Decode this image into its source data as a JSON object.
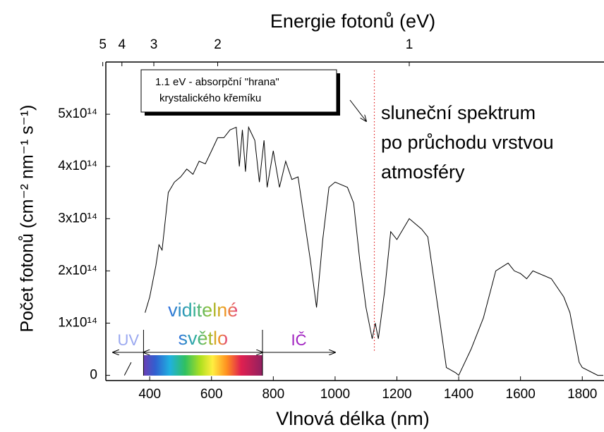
{
  "chart_data": {
    "type": "line",
    "title": "Energie fotonů (eV)",
    "x_label": "Vlnová délka (nm)",
    "y_label": "Počet fotonů (cm⁻² nm⁻¹ s⁻¹)",
    "color": "#000000",
    "x": [
      318,
      340,
      360,
      385,
      400,
      420,
      430,
      440,
      460,
      480,
      500,
      520,
      540,
      560,
      580,
      600,
      620,
      640,
      660,
      680,
      690,
      700,
      710,
      720,
      740,
      755,
      770,
      780,
      800,
      820,
      840,
      860,
      880,
      900,
      920,
      940,
      960,
      980,
      1000,
      1040,
      1060,
      1080,
      1100,
      1120,
      1130,
      1140,
      1160,
      1180,
      1200,
      1240,
      1280,
      1300,
      1340,
      1360,
      1390,
      1400,
      1440,
      1480,
      1520,
      1560,
      1580,
      1600,
      1620,
      1640,
      1700,
      1740,
      1760,
      1790,
      1800,
      1850,
      1868
    ],
    "values": [
      0,
      25000000000000.0,
      null,
      120000000000000.0,
      150000000000000.0,
      210000000000000.0,
      250000000000000.0,
      240000000000000.0,
      350000000000000.0,
      370000000000000.0,
      380000000000000.0,
      395000000000000.0,
      385000000000000.0,
      410000000000000.0,
      405000000000000.0,
      430000000000000.0,
      455000000000000.0,
      455000000000000.0,
      470000000000000.0,
      475000000000000.0,
      400000000000000.0,
      470000000000000.0,
      390000000000000.0,
      475000000000000.0,
      450000000000000.0,
      370000000000000.0,
      450000000000000.0,
      360000000000000.0,
      430000000000000.0,
      360000000000000.0,
      410000000000000.0,
      375000000000000.0,
      380000000000000.0,
      300000000000000.0,
      220000000000000.0,
      130000000000000.0,
      260000000000000.0,
      360000000000000.0,
      370000000000000.0,
      360000000000000.0,
      330000000000000.0,
      220000000000000.0,
      130000000000000.0,
      70000000000000.0,
      100000000000000.0,
      70000000000000.0,
      160000000000000.0,
      275000000000000.0,
      260000000000000.0,
      300000000000000.0,
      280000000000000.0,
      265000000000000.0,
      100000000000000.0,
      15000000000000.0,
      5000000000000.0,
      0,
      50000000000000.0,
      110000000000000.0,
      200000000000000.0,
      215000000000000.0,
      200000000000000.0,
      195000000000000.0,
      185000000000000.0,
      200000000000000.0,
      185000000000000.0,
      150000000000000.0,
      120000000000000.0,
      25000000000000.0,
      15000000000000.0,
      0,
      0
    ],
    "xlim": [
      258,
      1868
    ],
    "xticks": [
      400,
      600,
      800,
      1000,
      1200,
      1400,
      1600,
      1800
    ],
    "ylim": [
      -10000000000000.0,
      600000000000000.0
    ],
    "yticks": [
      {
        "value": 0,
        "label": "0"
      },
      {
        "value": 100000000000000.0,
        "label": "1x10¹⁴"
      },
      {
        "value": 200000000000000.0,
        "label": "2x10¹⁴"
      },
      {
        "value": 300000000000000.0,
        "label": "3x10¹⁴"
      },
      {
        "value": 400000000000000.0,
        "label": "4x10¹⁴"
      },
      {
        "value": 500000000000000.0,
        "label": "5x10¹⁴"
      }
    ],
    "x2ticks": [
      5,
      4,
      3,
      2,
      1
    ],
    "annotations": {
      "box": [
        "1.1 eV - absorpční \"hrana\"",
        "krystalického křemíku"
      ],
      "threshold_nm": 1127,
      "spectrum": [
        "sluneční spektrum",
        "po průchodu vrstvou",
        "atmosféry"
      ]
    },
    "regions": {
      "uv": {
        "label": "UV",
        "from": 281,
        "to": 380
      },
      "visible": {
        "lines": [
          "viditelné",
          "světlo"
        ],
        "from": 380,
        "to": 765
      },
      "ir": {
        "label": "IČ",
        "from": 765,
        "to": 1000
      }
    }
  }
}
